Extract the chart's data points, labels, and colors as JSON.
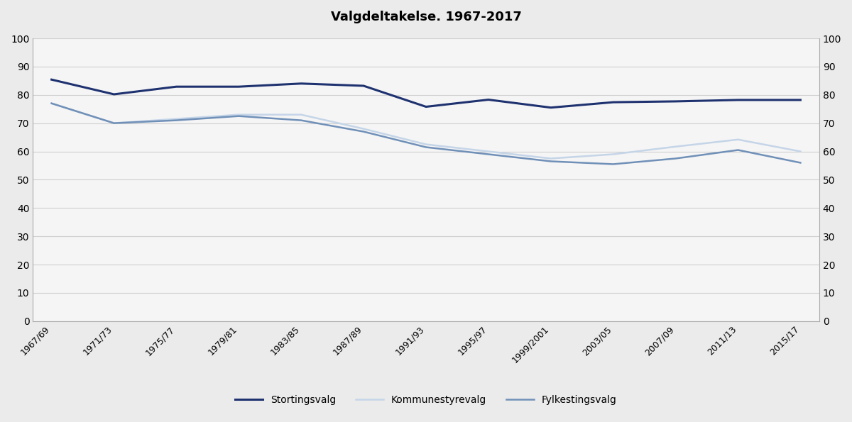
{
  "title": "Valgdeltakelse. 1967-2017",
  "x_labels": [
    "1967/69",
    "1971/73",
    "1975/77",
    "1979/81",
    "1983/85",
    "1987/89",
    "1991/93",
    "1995/97",
    "1999/2001",
    "2003/05",
    "2007/09",
    "2011/13",
    "2015/17"
  ],
  "stortingsvalg": [
    85.4,
    80.2,
    82.9,
    82.9,
    84.0,
    83.2,
    75.8,
    78.3,
    75.5,
    77.4,
    77.7,
    78.2,
    78.2
  ],
  "kommunestyrevalg": [
    77.0,
    70.0,
    71.5,
    73.0,
    73.0,
    68.0,
    62.5,
    60.0,
    57.5,
    59.0,
    61.7,
    64.2,
    60.0
  ],
  "fylkestingsvalg": [
    77.0,
    70.0,
    71.0,
    72.5,
    71.0,
    67.0,
    61.5,
    59.0,
    56.5,
    55.5,
    57.5,
    60.5,
    56.0
  ],
  "stortingsvalg_color": "#1f3270",
  "kommunestyrevalg_color": "#c5d5e8",
  "fylkestingsvalg_color": "#7090b8",
  "background_color": "#ebebeb",
  "plot_background_color": "#f5f5f5",
  "grid_color": "#d0d0d0",
  "ylim": [
    0,
    100
  ],
  "yticks": [
    0,
    10,
    20,
    30,
    40,
    50,
    60,
    70,
    80,
    90,
    100
  ],
  "legend_labels": [
    "Stortingsvalg",
    "Kommunestyrevalg",
    "Fylkestingsvalg"
  ],
  "stortingsvalg_lw": 2.2,
  "other_lw": 1.8
}
